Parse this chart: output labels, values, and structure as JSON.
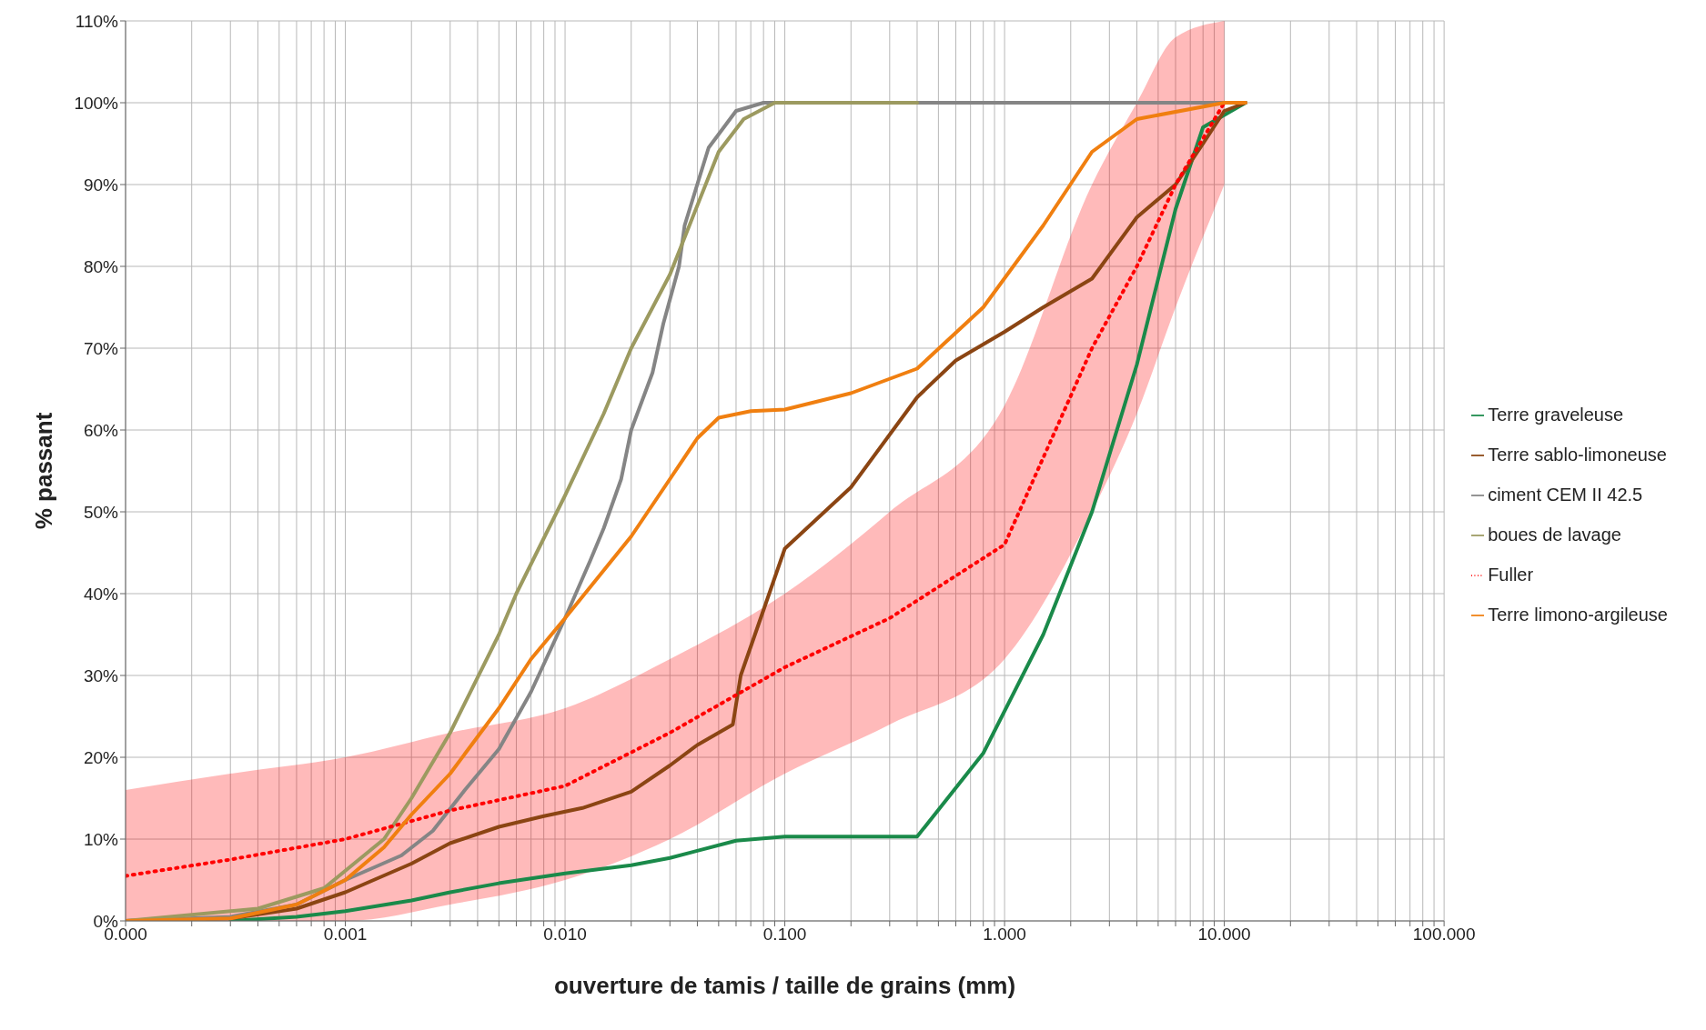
{
  "chart_data": {
    "type": "line",
    "xlabel": "ouverture de tamis / taille de grains (mm)",
    "ylabel": "% passant",
    "log": "x",
    "grid": true,
    "legend": "right",
    "marker": "none",
    "xlim": [
      0.0001,
      100
    ],
    "ylim": [
      0,
      110
    ],
    "xticks": [
      {
        "value": 0.0001,
        "label": "0.000"
      },
      {
        "value": 0.0002,
        "label": null
      },
      {
        "value": 0.0003,
        "label": null
      },
      {
        "value": 0.0004,
        "label": null
      },
      {
        "value": 0.0005,
        "label": null
      },
      {
        "value": 0.0006,
        "label": null
      },
      {
        "value": 0.0007,
        "label": null
      },
      {
        "value": 0.0008,
        "label": null
      },
      {
        "value": 0.0009,
        "label": null
      },
      {
        "value": 0.001,
        "label": "0.001"
      },
      {
        "value": 0.002,
        "label": null
      },
      {
        "value": 0.003,
        "label": null
      },
      {
        "value": 0.004,
        "label": null
      },
      {
        "value": 0.005,
        "label": null
      },
      {
        "value": 0.006,
        "label": null
      },
      {
        "value": 0.007,
        "label": null
      },
      {
        "value": 0.008,
        "label": null
      },
      {
        "value": 0.009,
        "label": null
      },
      {
        "value": 0.01,
        "label": "0.010"
      },
      {
        "value": 0.02,
        "label": null
      },
      {
        "value": 0.03,
        "label": null
      },
      {
        "value": 0.04,
        "label": null
      },
      {
        "value": 0.05,
        "label": null
      },
      {
        "value": 0.06,
        "label": null
      },
      {
        "value": 0.07,
        "label": null
      },
      {
        "value": 0.08,
        "label": null
      },
      {
        "value": 0.09,
        "label": null
      },
      {
        "value": 0.1,
        "label": "0.100"
      },
      {
        "value": 0.2,
        "label": null
      },
      {
        "value": 0.3,
        "label": null
      },
      {
        "value": 0.4,
        "label": null
      },
      {
        "value": 0.5,
        "label": null
      },
      {
        "value": 0.6,
        "label": null
      },
      {
        "value": 0.7,
        "label": null
      },
      {
        "value": 0.8,
        "label": null
      },
      {
        "value": 0.9,
        "label": null
      },
      {
        "value": 1,
        "label": "1.000"
      },
      {
        "value": 2,
        "label": null
      },
      {
        "value": 3,
        "label": null
      },
      {
        "value": 4,
        "label": null
      },
      {
        "value": 5,
        "label": null
      },
      {
        "value": 6,
        "label": null
      },
      {
        "value": 7,
        "label": null
      },
      {
        "value": 8,
        "label": null
      },
      {
        "value": 9,
        "label": null
      },
      {
        "value": 10,
        "label": "10.000"
      },
      {
        "value": 20,
        "label": null
      },
      {
        "value": 30,
        "label": null
      },
      {
        "value": 40,
        "label": null
      },
      {
        "value": 50,
        "label": null
      },
      {
        "value": 60,
        "label": null
      },
      {
        "value": 70,
        "label": null
      },
      {
        "value": 80,
        "label": null
      },
      {
        "value": 90,
        "label": null
      },
      {
        "value": 100,
        "label": "100.000"
      }
    ],
    "yticks": [
      {
        "value": 0,
        "label": "0%"
      },
      {
        "value": 10,
        "label": "10%"
      },
      {
        "value": 20,
        "label": "20%"
      },
      {
        "value": 30,
        "label": "30%"
      },
      {
        "value": 40,
        "label": "40%"
      },
      {
        "value": 50,
        "label": "50%"
      },
      {
        "value": 60,
        "label": "60%"
      },
      {
        "value": 70,
        "label": "70%"
      },
      {
        "value": 80,
        "label": "80%"
      },
      {
        "value": 90,
        "label": "90%"
      },
      {
        "value": 100,
        "label": "100%"
      },
      {
        "value": 110,
        "label": "110%"
      }
    ],
    "series": [
      {
        "name": "Terre graveleuse",
        "color": "#1a8a4a",
        "line_style": "solid",
        "x": [
          0.0003,
          0.0006,
          0.001,
          0.002,
          0.003,
          0.005,
          0.01,
          0.02,
          0.03,
          0.06,
          0.1,
          0.2,
          0.4,
          0.8,
          1.5,
          2.5,
          4,
          6,
          8,
          12.5
        ],
        "values": [
          0,
          0.5,
          1.2,
          2.5,
          3.5,
          4.6,
          5.8,
          6.8,
          7.7,
          9.8,
          10.3,
          10.3,
          10.3,
          20.5,
          35,
          50,
          68,
          87,
          97,
          100
        ]
      },
      {
        "name": "Terre sablo-limoneuse",
        "color": "#8b4513",
        "line_style": "solid",
        "x": [
          0.0001,
          0.0003,
          0.0006,
          0.001,
          0.002,
          0.003,
          0.005,
          0.008,
          0.012,
          0.02,
          0.03,
          0.04,
          0.058,
          0.063,
          0.08,
          0.1,
          0.2,
          0.4,
          0.6,
          1,
          1.5,
          2.5,
          4,
          6,
          8,
          10,
          12.5
        ],
        "values": [
          0,
          0.3,
          1.5,
          3.5,
          7,
          9.5,
          11.5,
          12.8,
          13.8,
          15.8,
          19,
          21.5,
          24,
          30,
          38,
          45.5,
          53,
          64,
          68.5,
          72,
          75,
          78.5,
          86,
          90,
          95,
          99,
          100
        ]
      },
      {
        "name": "ciment CEM II 42.5",
        "color": "#858585",
        "line_style": "solid",
        "x": [
          0.0001,
          0.0003,
          0.0006,
          0.001,
          0.0018,
          0.0025,
          0.0035,
          0.005,
          0.007,
          0.01,
          0.013,
          0.015,
          0.018,
          0.02,
          0.025,
          0.028,
          0.033,
          0.035,
          0.045,
          0.06,
          0.08,
          12.5
        ],
        "values": [
          0,
          0.5,
          2,
          5,
          8,
          11,
          16,
          21,
          28,
          37,
          44,
          48,
          54,
          60,
          67,
          73,
          80,
          85,
          94.5,
          99,
          100,
          100
        ]
      },
      {
        "name": "boues de lavage",
        "color": "#9c9a60",
        "line_style": "solid",
        "x": [
          0.0001,
          0.0004,
          0.0008,
          0.0015,
          0.002,
          0.003,
          0.005,
          0.006,
          0.01,
          0.015,
          0.02,
          0.03,
          0.05,
          0.065,
          0.09,
          0.4
        ],
        "values": [
          0,
          1.5,
          4,
          10,
          15,
          23,
          35,
          40,
          52,
          62,
          70,
          79,
          94,
          98,
          100,
          100
        ]
      },
      {
        "name": "Fuller",
        "color": "#ff0000",
        "line_style": "dotted",
        "x": [
          0.0001,
          0.0003,
          0.001,
          0.003,
          0.01,
          0.03,
          0.1,
          0.3,
          1,
          2.5,
          4,
          6,
          10
        ],
        "values": [
          5.5,
          7.5,
          10,
          13.5,
          16.5,
          23,
          31,
          37,
          46,
          70,
          80,
          90,
          100
        ],
        "lower": [
          0,
          0,
          0,
          2,
          5,
          10,
          18,
          24,
          32,
          50,
          62,
          75,
          90
        ],
        "upper": [
          16,
          18,
          20,
          23,
          26,
          32,
          40,
          50,
          63,
          90,
          100,
          108,
          110
        ]
      },
      {
        "name": "Terre limono-argileuse",
        "color": "#f07f10",
        "line_style": "solid",
        "x": [
          0.0001,
          0.0003,
          0.0006,
          0.001,
          0.0015,
          0.002,
          0.003,
          0.005,
          0.007,
          0.01,
          0.02,
          0.03,
          0.04,
          0.05,
          0.07,
          0.1,
          0.2,
          0.4,
          0.8,
          1.5,
          2.5,
          4,
          10,
          12.5
        ],
        "values": [
          0,
          0.3,
          2,
          5,
          9,
          13,
          18,
          26,
          32,
          37,
          47,
          54,
          59,
          61.5,
          62.3,
          62.5,
          64.5,
          67.5,
          75,
          85,
          94,
          98,
          100,
          100
        ]
      }
    ]
  }
}
